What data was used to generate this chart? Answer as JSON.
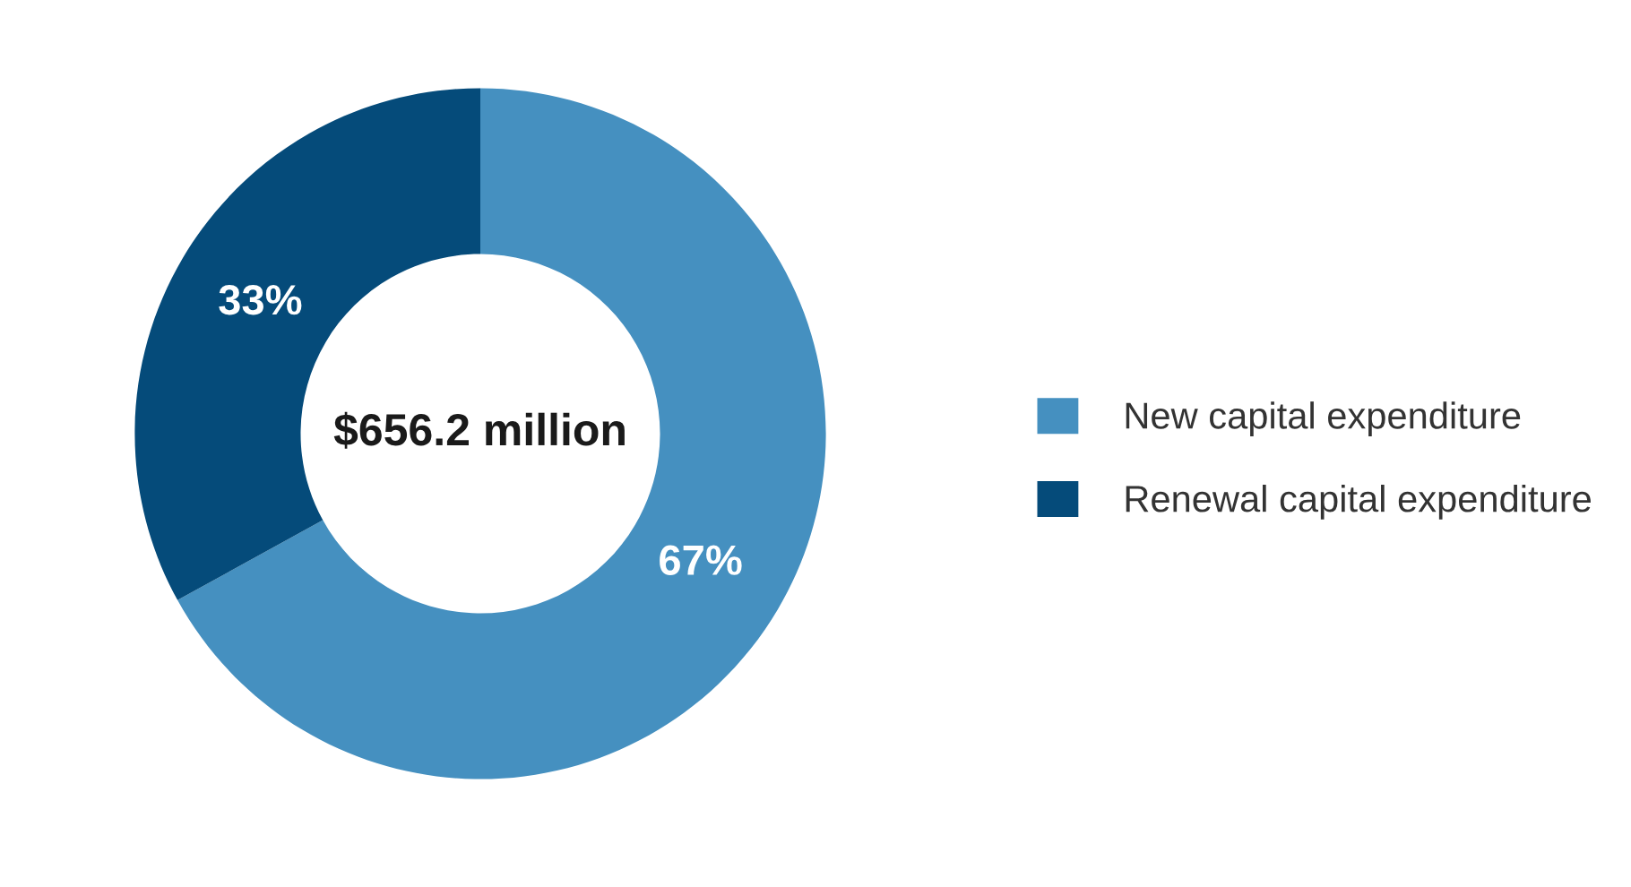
{
  "chart_data": {
    "type": "donut",
    "categories": [
      "New capital expenditure",
      "Renewal capital expenditure"
    ],
    "values": [
      67,
      33
    ],
    "colors": [
      "#4590c0",
      "#054b7a"
    ],
    "value_labels": [
      "67%",
      "33%"
    ],
    "annotations": [
      "$656.2 million"
    ],
    "legend": "right"
  }
}
